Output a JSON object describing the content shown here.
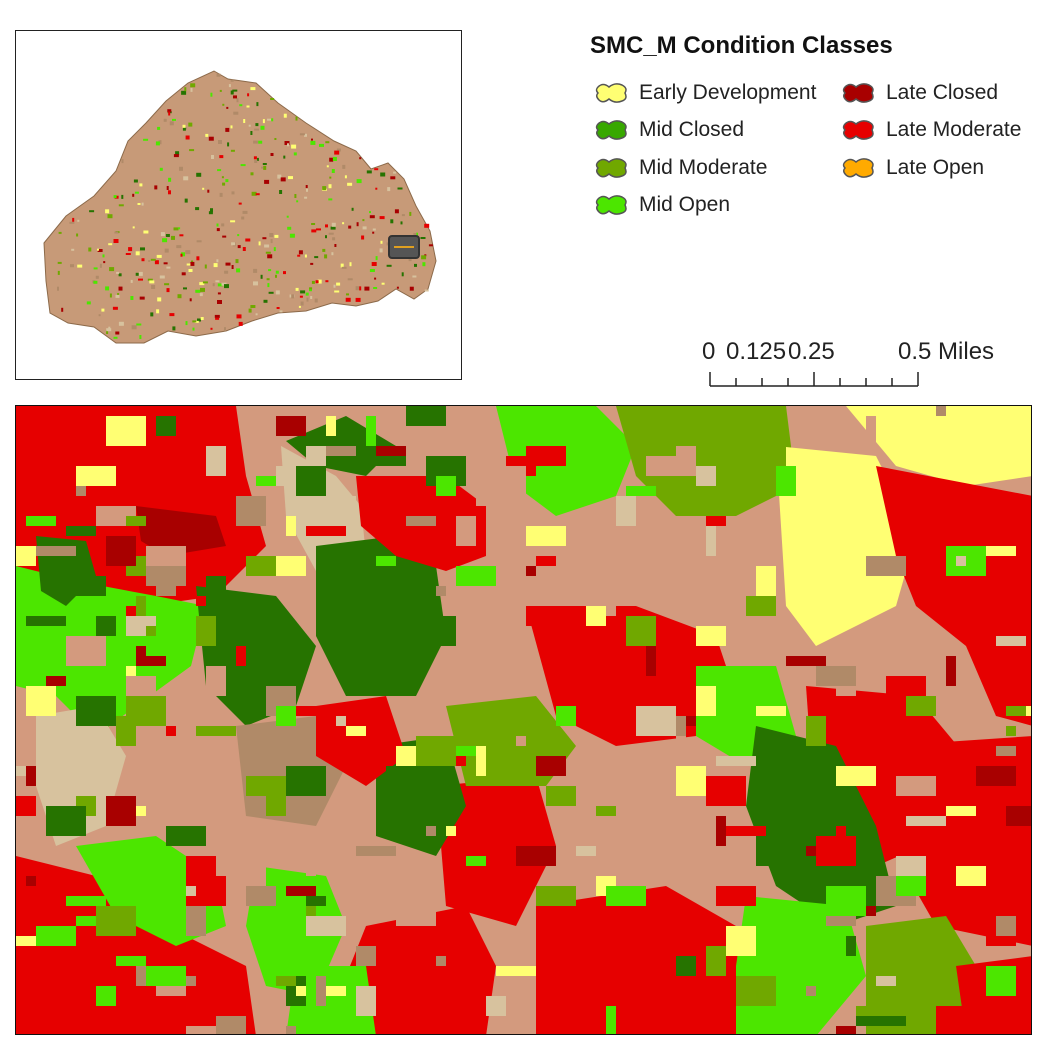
{
  "legend": {
    "title": "SMC_M Condition Classes",
    "items": [
      {
        "label": "Early Development",
        "color": "#ffff73"
      },
      {
        "label": "Mid Closed",
        "color": "#38a800"
      },
      {
        "label": "Mid Moderate",
        "color": "#70a800"
      },
      {
        "label": "Mid Open",
        "color": "#4ce600"
      },
      {
        "label": "Late Closed",
        "color": "#a80000"
      },
      {
        "label": "Late Moderate",
        "color": "#e60000"
      },
      {
        "label": "Late Open",
        "color": "#ffaa00"
      }
    ]
  },
  "scalebar": {
    "labels": [
      "0",
      "0.125",
      "0.25",
      "0.5 Miles"
    ]
  },
  "map_palette": {
    "late_moderate": "#e60000",
    "late_closed": "#a80000",
    "mid_closed": "#267300",
    "mid_moderate": "#70a800",
    "mid_open": "#4ce600",
    "early_development": "#ffff73",
    "tan": "#d7c29e",
    "salmon": "#d39a7e",
    "brown": "#b08a68",
    "mauve": "#c08b7a"
  }
}
